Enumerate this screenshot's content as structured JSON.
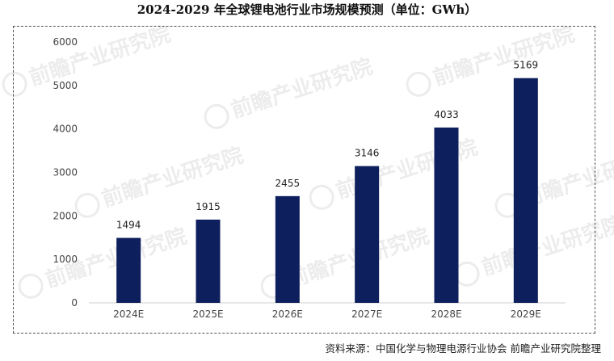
{
  "source_note": "资料来源：中国化学与物理电源行业协会 前瞻产业研究院整理",
  "watermark": "前瞻产业研究院",
  "colors": {
    "bar": "#0d1f5c",
    "axis": "#cfcfcf",
    "tick_text": "#444444",
    "label_text": "#222222"
  },
  "chart_data": {
    "type": "bar",
    "title": "2024-2029 年全球锂电池行业市场规模预测（单位：GWh）",
    "xlabel": "",
    "ylabel": "",
    "categories": [
      "2024E",
      "2025E",
      "2026E",
      "2027E",
      "2028E",
      "2029E"
    ],
    "values": [
      1494,
      1915,
      2455,
      3146,
      4033,
      5169
    ],
    "ylim": [
      0,
      6000
    ],
    "yticks": [
      0,
      1000,
      2000,
      3000,
      4000,
      5000,
      6000
    ],
    "grid": false,
    "legend": "none"
  }
}
